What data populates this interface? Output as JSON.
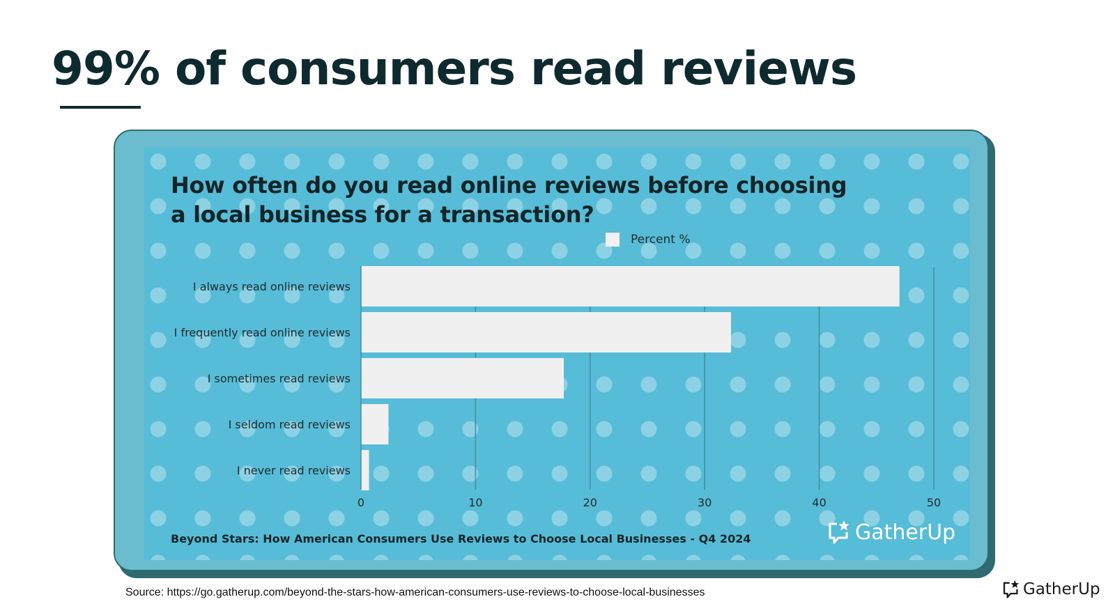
{
  "slide": {
    "title": "99% of consumers read reviews"
  },
  "chart_data": {
    "type": "bar",
    "orientation": "horizontal",
    "title": "How often do you read online reviews before choosing a local business for a transaction?",
    "categories": [
      "I always read online reviews",
      "I frequently read online reviews",
      "I sometimes read reviews",
      "I seldom read reviews",
      "I never read reviews"
    ],
    "series": [
      {
        "name": "Percent %",
        "values": [
          47,
          32.3,
          17.7,
          2.4,
          0.7
        ]
      }
    ],
    "xlim": [
      0,
      50
    ],
    "xticks": [
      "0",
      "10",
      "20",
      "30",
      "40",
      "50"
    ],
    "grid": true,
    "legend": "top-center",
    "colors": {
      "bar": "#f0f0f0",
      "panel": "#57bcd7",
      "grid": "#3f8ea1"
    }
  },
  "card": {
    "citation": "Beyond Stars: How American Consumers Use Reviews to Choose Local Businesses - Q4 2024",
    "logo_text": "GatherUp"
  },
  "footer": {
    "source": "Source: https://go.gatherup.com/beyond-the-stars-how-american-consumers-use-reviews-to-choose-local-businesses",
    "logo_text": "GatherUp"
  }
}
